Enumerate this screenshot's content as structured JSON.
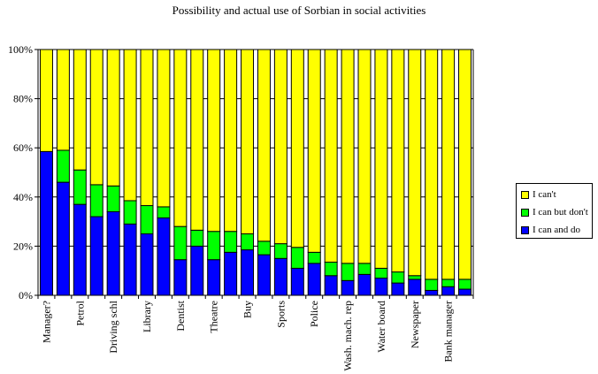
{
  "chart_data": {
    "type": "bar",
    "stacked": "percent",
    "title": "Possibility and actual use of Sorbian in social activities",
    "xlabel": "",
    "ylabel": "",
    "ylim": [
      0,
      100
    ],
    "yticks": [
      "0%",
      "20%",
      "40%",
      "60%",
      "80%",
      "100%"
    ],
    "grid": true,
    "legend_position": "right",
    "categories": [
      "Manager?",
      "",
      "Petrol",
      "",
      "Driving schl",
      "",
      "Library",
      "",
      "Dentist",
      "",
      "Theatre",
      "",
      "Buy",
      "",
      "Sports",
      "",
      "Police",
      "",
      "Wash. mach. rep",
      "",
      "Water board",
      "",
      "Newspaper",
      "",
      "Bank manager",
      ""
    ],
    "series": [
      {
        "name": "I can and do",
        "color": "#0000ff",
        "values": [
          58.5,
          46,
          37,
          32,
          34,
          29,
          25,
          31.5,
          14.5,
          20,
          14.5,
          17.5,
          18.5,
          16.5,
          15,
          11,
          13,
          8,
          6,
          8.5,
          7,
          5,
          6.5,
          2,
          3.5,
          2.5
        ]
      },
      {
        "name": "I can but don't",
        "color": "#00ff00",
        "values": [
          0,
          13,
          14,
          13,
          10.5,
          9.5,
          11.5,
          4.5,
          13.5,
          6.5,
          11.5,
          8.5,
          6.5,
          5.5,
          6,
          8.5,
          4.5,
          5.5,
          7,
          4.5,
          4,
          4.5,
          1.5,
          4.5,
          3,
          4
        ]
      },
      {
        "name": "I can't",
        "color": "#ffff00",
        "values": [
          41.5,
          41,
          49,
          55,
          55.5,
          61.5,
          63.5,
          64,
          72,
          73.5,
          74,
          74,
          75,
          78,
          79,
          80.5,
          82.5,
          86.5,
          87,
          87,
          89,
          90.5,
          92,
          93.5,
          93.5,
          93.5
        ]
      }
    ]
  }
}
